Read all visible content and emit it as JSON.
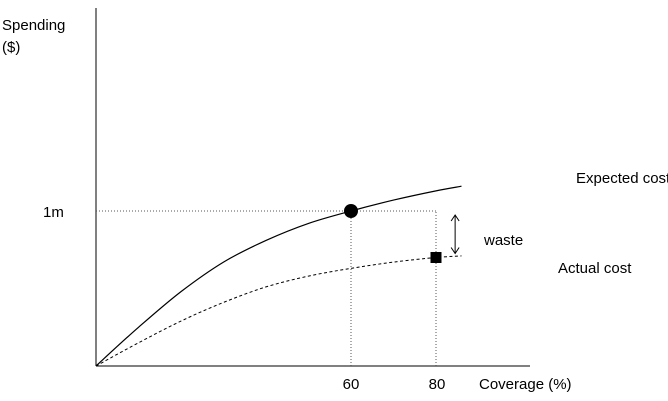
{
  "chart_data": {
    "type": "line",
    "title": "",
    "ylabel_lines": [
      "Spending",
      "($)"
    ],
    "xlabel": "Coverage (%)",
    "x_ticks": [
      {
        "label": "60",
        "value": 60
      },
      {
        "label": "80",
        "value": 80
      }
    ],
    "y_ticks": [
      {
        "label": "1m",
        "value": 1.0
      }
    ],
    "xlim": [
      0,
      86
    ],
    "ylim": [
      0,
      1.48
    ],
    "grid": false,
    "series": [
      {
        "name": "Expected cost",
        "style": "solid",
        "x": [
          0,
          10,
          20,
          30,
          40,
          50,
          60,
          70,
          80,
          86
        ],
        "y": [
          0,
          0.25,
          0.48,
          0.67,
          0.81,
          0.92,
          1.0,
          1.07,
          1.13,
          1.16
        ]
      },
      {
        "name": "Actual cost",
        "style": "dashed",
        "x": [
          0,
          10,
          20,
          30,
          40,
          50,
          60,
          70,
          80,
          86
        ],
        "y": [
          0,
          0.15,
          0.29,
          0.41,
          0.51,
          0.58,
          0.63,
          0.67,
          0.7,
          0.71
        ]
      }
    ],
    "markers": [
      {
        "shape": "circle",
        "series": "Expected cost",
        "x": 60,
        "y": 1.0
      },
      {
        "shape": "square",
        "series": "Actual cost",
        "x": 80,
        "y": 0.7
      }
    ],
    "reference_lines": [
      {
        "from": [
          0,
          1.0
        ],
        "to": [
          80,
          1.0
        ]
      },
      {
        "from": [
          60,
          0
        ],
        "to": [
          60,
          1.0
        ]
      },
      {
        "from": [
          80,
          0
        ],
        "to": [
          80,
          1.0
        ]
      }
    ],
    "annotations": [
      {
        "text": "waste",
        "from_y": 1.0,
        "to_y": 0.7,
        "x": 84.5
      }
    ],
    "colors": {
      "line": "#000000",
      "reference": "#555555"
    }
  }
}
